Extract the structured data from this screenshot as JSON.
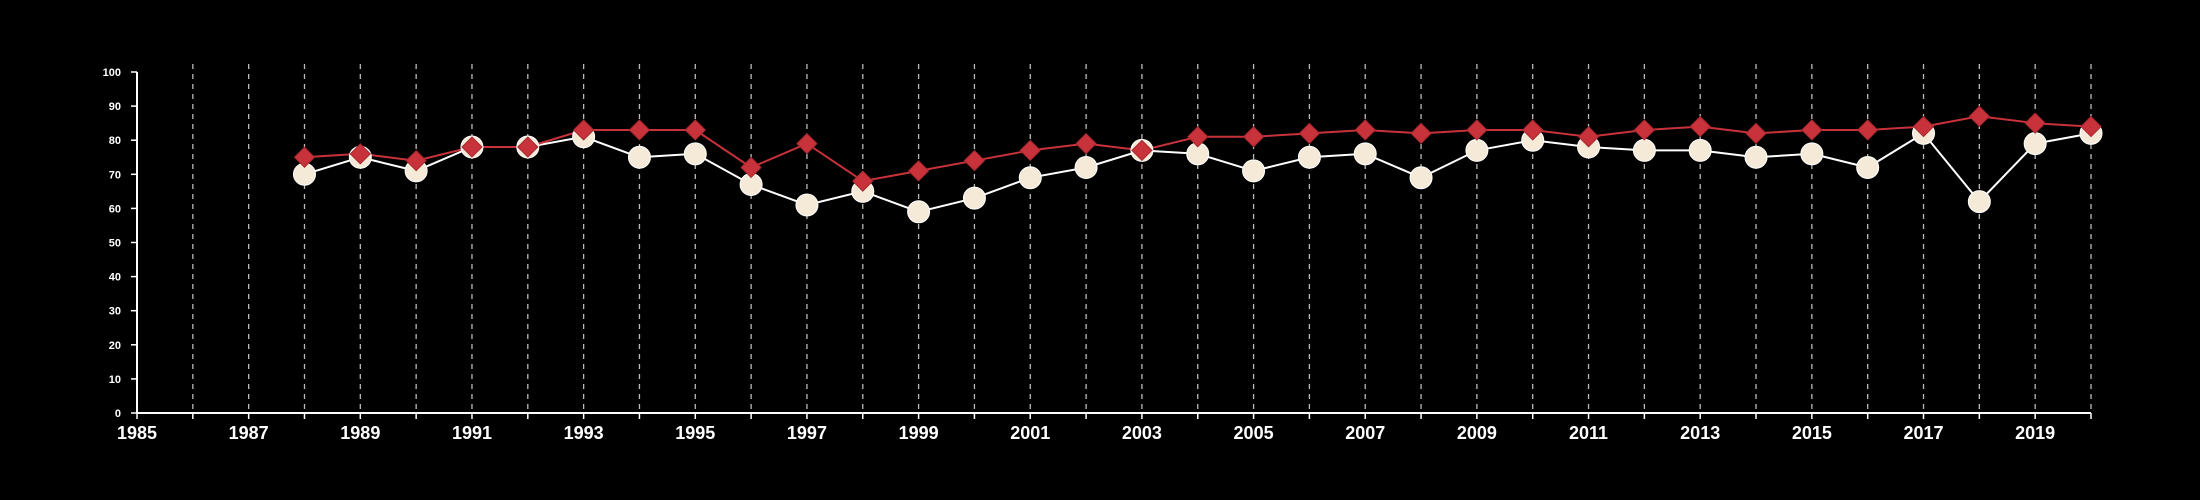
{
  "chart_data": {
    "type": "line",
    "title": "",
    "xlabel": "",
    "ylabel": "",
    "xlim": [
      1985,
      2020
    ],
    "ylim": [
      0,
      100
    ],
    "x_ticks": [
      1985,
      1987,
      1989,
      1991,
      1993,
      1995,
      1997,
      1999,
      2001,
      2003,
      2005,
      2007,
      2009,
      2011,
      2013,
      2015,
      2017,
      2019
    ],
    "y_ticks": [
      0,
      10,
      20,
      30,
      40,
      50,
      60,
      70,
      80,
      90,
      100
    ],
    "grid": "vertical dashed lines at every year",
    "legend": "none",
    "background_color": "#000000",
    "series": [
      {
        "marker": "diamond",
        "color": "#c8323a",
        "line_color": "#c8323a",
        "x": [
          1988,
          1989,
          1990,
          1991,
          1992,
          1993,
          1994,
          1995,
          1996,
          1997,
          1998,
          1999,
          2000,
          2001,
          2002,
          2003,
          2004,
          2005,
          2006,
          2007,
          2008,
          2009,
          2010,
          2011,
          2012,
          2013,
          2014,
          2015,
          2016,
          2017,
          2018,
          2019,
          2020
        ],
        "values": [
          75,
          76,
          74,
          78,
          78,
          83,
          83,
          83,
          72,
          79,
          68,
          71,
          74,
          77,
          79,
          77,
          81,
          81,
          82,
          83,
          82,
          83,
          83,
          81,
          83,
          84,
          82,
          83,
          83,
          84,
          87,
          85,
          84
        ]
      },
      {
        "marker": "circle",
        "color": "#f5e9d8",
        "line_color": "#ffffff",
        "x": [
          1988,
          1989,
          1990,
          1991,
          1992,
          1993,
          1994,
          1995,
          1996,
          1997,
          1998,
          1999,
          2000,
          2001,
          2002,
          2003,
          2004,
          2005,
          2006,
          2007,
          2008,
          2009,
          2010,
          2011,
          2012,
          2013,
          2014,
          2015,
          2016,
          2017,
          2018,
          2019,
          2020
        ],
        "values": [
          70,
          75,
          71,
          78,
          78,
          81,
          75,
          76,
          67,
          61,
          65,
          59,
          63,
          69,
          72,
          77,
          76,
          71,
          75,
          76,
          69,
          77,
          80,
          78,
          77,
          77,
          75,
          76,
          72,
          82,
          62,
          79,
          82
        ]
      }
    ]
  }
}
